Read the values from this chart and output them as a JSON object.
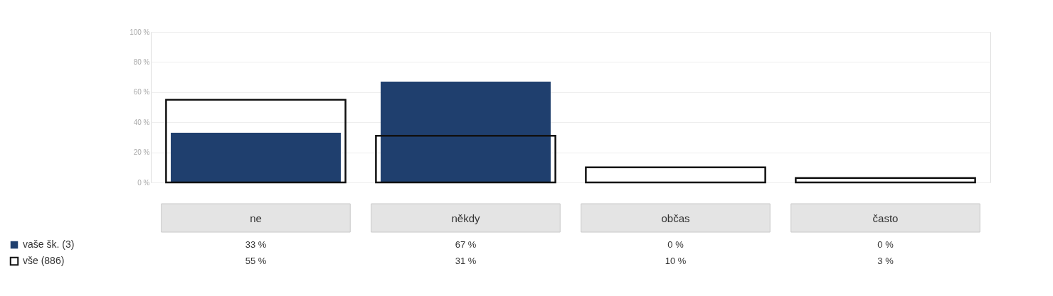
{
  "chart_data": {
    "type": "bar",
    "categories": [
      "ne",
      "někdy",
      "občas",
      "často"
    ],
    "series": [
      {
        "name": "vaše šk. (3)",
        "color": "#1f3f6e",
        "values": [
          33,
          67,
          0,
          0
        ],
        "value_labels": [
          "33 %",
          "67 %",
          "0 %",
          "0 %"
        ]
      },
      {
        "name": "vše (886)",
        "color": "#111111",
        "values": [
          55,
          31,
          10,
          3
        ],
        "value_labels": [
          "55 %",
          "31 %",
          "10 %",
          "3 %"
        ]
      }
    ],
    "ylim": [
      0,
      100
    ],
    "yticks": [
      {
        "value": 0,
        "label": "0 %"
      },
      {
        "value": 20,
        "label": "20 %"
      },
      {
        "value": 40,
        "label": "40 %"
      },
      {
        "value": 60,
        "label": "60 %"
      },
      {
        "value": 80,
        "label": "80 %"
      },
      {
        "value": 100,
        "label": "100 %"
      }
    ],
    "grid": "y",
    "legend": "bottom left"
  }
}
